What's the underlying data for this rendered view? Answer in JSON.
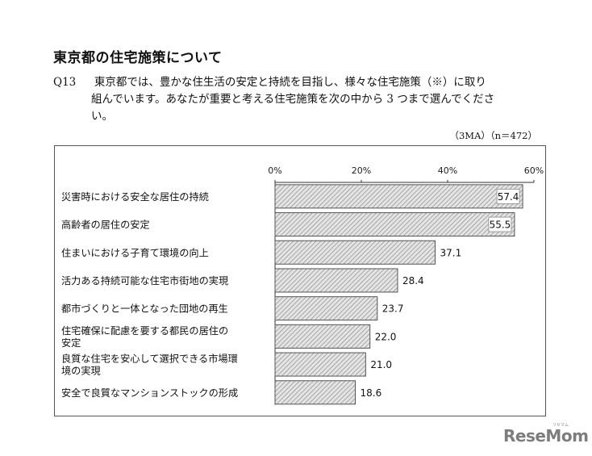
{
  "heading": "東京都の住宅施策について",
  "question": {
    "number": "Q13",
    "line1": "東京都では、豊かな住生活の安定と持続を目指し、様々な住宅施策（※）に取り",
    "line2": "組んでいます。あなたが重要と考える住宅施策を次の中から 3 つまで選んでくださ",
    "line3": "い。"
  },
  "sample_note": "（3MA）（n＝472）",
  "watermark": "ReseMom",
  "watermark_sub": "リセマム",
  "colors": {
    "bar_fill": "#d9d9d9",
    "bar_hatch": "#9a9a9a",
    "axis": "#333333"
  },
  "chart_data": {
    "type": "bar",
    "orientation": "horizontal",
    "categories": [
      "災害時における安全な居住の持続",
      "高齢者の居住の安定",
      "住まいにおける子育て環境の向上",
      "活力ある持続可能な住宅市街地の実現",
      "都市づくりと一体となった団地の再生",
      "住宅確保に配慮を要する都民の居住の|安定",
      "良質な住宅を安心して選択できる市場環|境の実現",
      "安全で良質なマンションストックの形成"
    ],
    "values": [
      57.4,
      55.5,
      37.1,
      28.4,
      23.7,
      22.0,
      21.0,
      18.6
    ],
    "value_labels": [
      "57.4",
      "55.5",
      "37.1",
      "28.4",
      "23.7",
      "22.0",
      "21.0",
      "18.6"
    ],
    "xlim": [
      0,
      60
    ],
    "xticks": [
      0,
      20,
      40,
      60
    ],
    "xtick_labels": [
      "0%",
      "20%",
      "40%",
      "60%"
    ],
    "grid": false,
    "legend": "none"
  }
}
